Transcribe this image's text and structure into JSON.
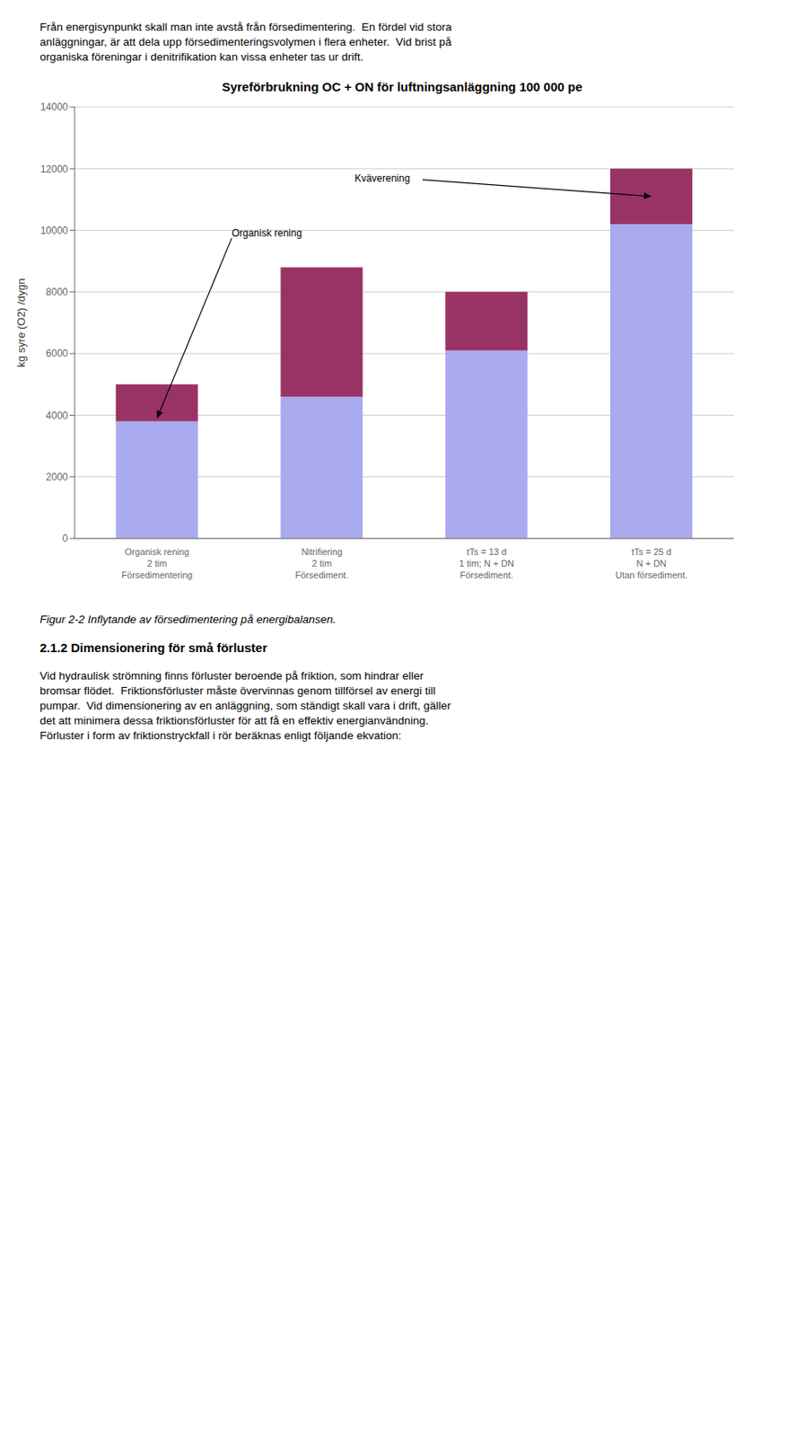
{
  "chart_data": {
    "type": "bar",
    "stacked": true,
    "title": "Syreförbrukning OC + ON för luftningsanläggning 100 000 pe",
    "ylabel": "kg syre (O2) /dygn",
    "categories": [
      "Organisk rening\n2 tim\nFörsedimentering",
      "Nitrifiering\n2 tim\nFörsediment.",
      "tTs = 13 d\n1 tim; N + DN\nFörsediment.",
      "tTs = 25 d\nN + DN\nUtan försediment."
    ],
    "series": [
      {
        "color": "#aaaaee",
        "values": [
          3800,
          4600,
          6100,
          10200
        ]
      },
      {
        "color": "#993366",
        "values": [
          1200,
          4200,
          1900,
          1800
        ]
      }
    ],
    "ylim": [
      0,
      14000
    ],
    "yticks": [
      0,
      2000,
      4000,
      6000,
      8000,
      10000,
      12000,
      14000
    ],
    "grid": true,
    "annotations": [
      {
        "text": "Organisk rening",
        "x": "Organisk rening\n2 tim\nFörsedimentering",
        "y": 3900
      },
      {
        "text": "Kväverening",
        "x": "tTs = 25 d\nN + DN\nUtan försediment.",
        "y": 11100
      }
    ]
  },
  "page_texts": [
    {
      "text": "Från energisynpunkt skall man inte avstå från försedimentering.  En fördel vid stora\nanläggningar, är att dela upp försedimenteringsvolymen i flera enheter.  Vid brist på\norganiska föreningar i denitrifikation kan vissa enheter tas ur drift."
    },
    {
      "text": "Figur 2-2 Inflytande av försedimentering på energibalansen.",
      "style": "italic"
    },
    {
      "text": "2.1.2 Dimensionering för små förluster",
      "style": "bold"
    },
    {
      "text": "Vid hydraulisk strömning finns förluster beroende på friktion, som hindrar eller\nbromsar flödet.  Friktionsförluster måste övervinnas genom tillförsel av energi till\npumpar.  Vid dimensionering av en anläggning, som ständigt skall vara i drift, gäller\ndet att minimera dessa friktionsförluster för att få en effektiv energianvändning.\nFörluster i form av friktionstryckfall i rör beräknas enligt följande ekvation:"
    }
  ]
}
